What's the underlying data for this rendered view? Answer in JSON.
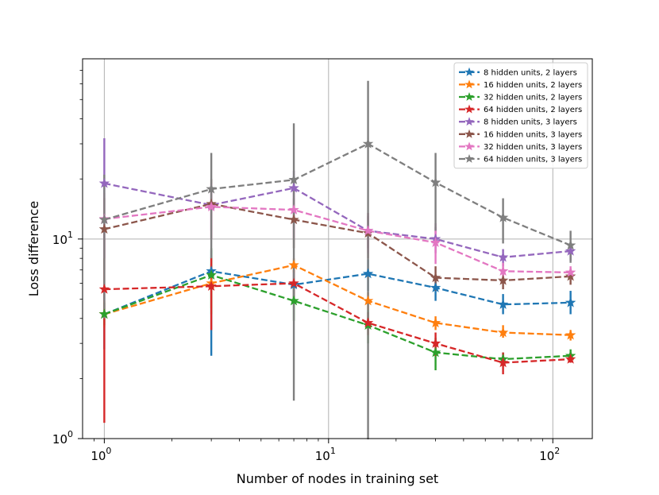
{
  "chart_data": {
    "type": "line",
    "x_scale": "log",
    "y_scale": "log",
    "xlabel": "Number of nodes in training set",
    "ylabel": "Loss difference",
    "xlim": [
      0.8,
      150
    ],
    "ylim": [
      1,
      80
    ],
    "x_ticks": [
      {
        "value": 1,
        "base": "10",
        "exp": "0"
      },
      {
        "value": 10,
        "base": "10",
        "exp": "1"
      },
      {
        "value": 100,
        "base": "10",
        "exp": "2"
      }
    ],
    "y_ticks": [
      {
        "value": 1,
        "base": "10",
        "exp": "0"
      },
      {
        "value": 10,
        "base": "10",
        "exp": "1"
      }
    ],
    "grid": true,
    "legend_position": "top-right",
    "x": [
      1,
      3,
      7,
      15,
      30,
      60,
      120
    ],
    "series": [
      {
        "name": "8 hidden units, 2 layers",
        "color": "#1f77b4",
        "values": [
          4.2,
          6.9,
          5.9,
          6.7,
          5.7,
          4.7,
          4.8
        ],
        "err_low": [
          2.8,
          2.6,
          4.8,
          5.5,
          4.9,
          4.2,
          4.2
        ],
        "err_high": [
          5.8,
          8.8,
          7.0,
          7.9,
          6.6,
          5.3,
          5.5
        ]
      },
      {
        "name": "16 hidden units, 2 layers",
        "color": "#ff7f0e",
        "values": [
          4.2,
          6.0,
          7.4,
          4.9,
          3.8,
          3.4,
          3.3
        ],
        "err_low": [
          3.6,
          4.5,
          6.8,
          4.4,
          3.5,
          3.2,
          3.1
        ],
        "err_high": [
          4.9,
          7.5,
          8.0,
          5.4,
          4.1,
          3.7,
          3.5
        ]
      },
      {
        "name": "32 hidden units, 2 layers",
        "color": "#2ca02c",
        "values": [
          4.2,
          6.6,
          4.9,
          3.7,
          2.7,
          2.5,
          2.6
        ],
        "err_low": [
          3.7,
          4.2,
          3.9,
          3.0,
          2.2,
          2.3,
          2.5
        ],
        "err_high": [
          4.8,
          9.0,
          5.9,
          4.4,
          3.2,
          2.7,
          2.8
        ]
      },
      {
        "name": "64 hidden units, 2 layers",
        "color": "#d62728",
        "values": [
          5.6,
          5.8,
          6.0,
          3.8,
          3.0,
          2.4,
          2.5
        ],
        "err_low": [
          1.2,
          3.5,
          4.9,
          3.3,
          2.6,
          2.1,
          2.4
        ],
        "err_high": [
          10.0,
          8.1,
          7.1,
          4.3,
          3.4,
          2.7,
          2.7
        ]
      },
      {
        "name": "8 hidden units, 3 layers",
        "color": "#9467bd",
        "values": [
          19,
          14.8,
          18,
          11,
          10,
          8.1,
          8.7
        ],
        "err_low": [
          8,
          11,
          14,
          9,
          8.5,
          7.3,
          7.8
        ],
        "err_high": [
          32,
          18.5,
          22,
          13,
          11.5,
          8.9,
          9.6
        ]
      },
      {
        "name": "16 hidden units, 3 layers",
        "color": "#8c564b",
        "values": [
          11.2,
          15.0,
          12.5,
          10.7,
          6.4,
          6.2,
          6.5
        ],
        "err_low": [
          7,
          10,
          9,
          8,
          5.5,
          5.6,
          5.9
        ],
        "err_high": [
          16,
          20,
          16,
          13.5,
          7.3,
          6.8,
          7.1
        ]
      },
      {
        "name": "32 hidden units, 3 layers",
        "color": "#e377c2",
        "values": [
          12.6,
          14.5,
          14.0,
          11.0,
          9.6,
          6.9,
          6.8
        ],
        "err_low": [
          8,
          10,
          10,
          8.5,
          7.5,
          6.2,
          6.3
        ],
        "err_high": [
          17,
          19,
          18,
          13.5,
          12,
          7.6,
          7.3
        ]
      },
      {
        "name": "64 hidden units, 3 layers",
        "color": "#7f7f7f",
        "values": [
          12.5,
          17.8,
          19.8,
          30.0,
          19.2,
          12.8,
          9.3
        ],
        "err_low": [
          4,
          8,
          1.55,
          0.8,
          11,
          9.5,
          7.6
        ],
        "err_high": [
          21,
          27,
          38,
          62,
          27,
          16,
          11
        ]
      }
    ]
  }
}
